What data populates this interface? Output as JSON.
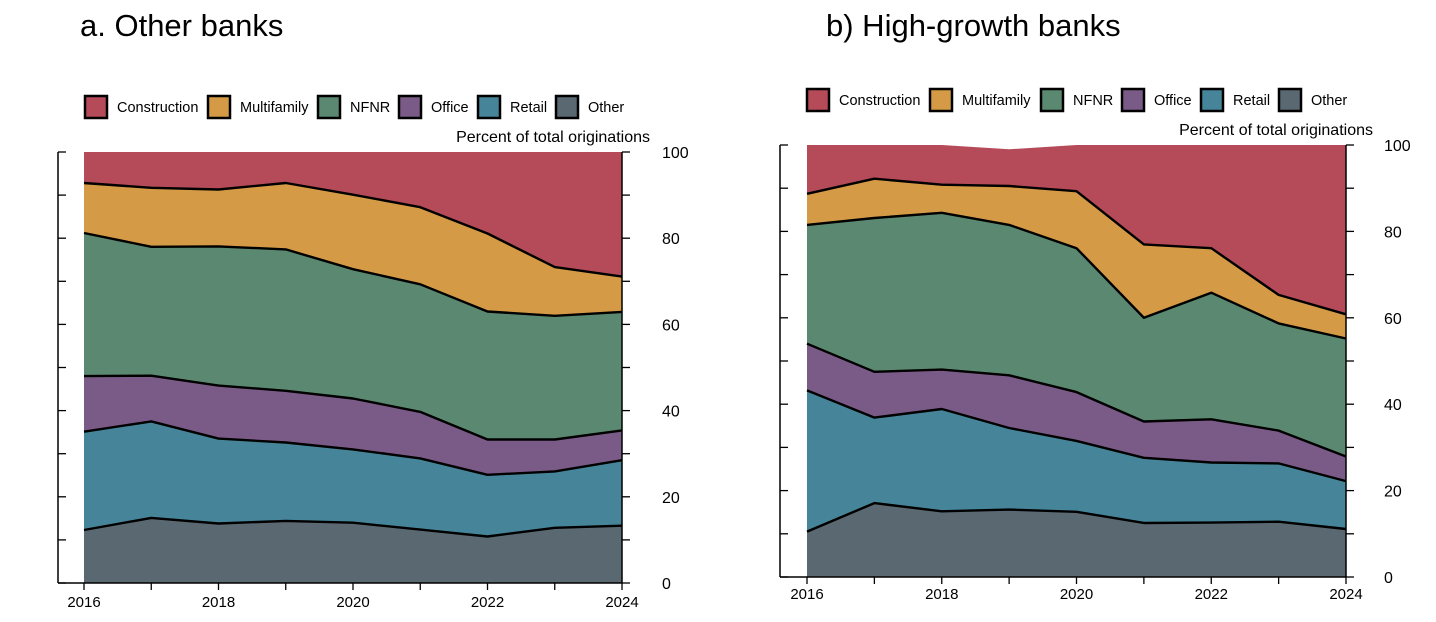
{
  "chart_data": [
    {
      "type": "area",
      "stacked": true,
      "title": "a.   Other banks",
      "axis_note": "Percent of total originations",
      "x": [
        2016,
        2017,
        2018,
        2019,
        2020,
        2021,
        2022,
        2023,
        2024
      ],
      "x_ticks": [
        "2016",
        "2018",
        "2020",
        "2022",
        "2024"
      ],
      "ylim": [
        0,
        100
      ],
      "y_ticks": [
        "0",
        "20",
        "40",
        "60",
        "80",
        "100"
      ],
      "legend_position": "top",
      "series": [
        {
          "name": "Other",
          "color": "#5a6872",
          "values": [
            12.3,
            15.1,
            13.8,
            14.4,
            14.0,
            12.4,
            10.8,
            12.8,
            13.3
          ]
        },
        {
          "name": "Retail",
          "color": "#468599",
          "values": [
            22.8,
            22.4,
            19.7,
            18.2,
            17.0,
            16.5,
            14.3,
            13.1,
            15.2
          ]
        },
        {
          "name": "Office",
          "color": "#7a5b87",
          "values": [
            12.9,
            10.6,
            12.3,
            12.0,
            11.8,
            10.8,
            8.2,
            7.4,
            6.9
          ]
        },
        {
          "name": "NFNR",
          "color": "#5b8870",
          "values": [
            33.2,
            29.9,
            32.3,
            32.8,
            30.0,
            29.6,
            29.7,
            28.7,
            27.5
          ]
        },
        {
          "name": "Multifamily",
          "color": "#d59a45",
          "values": [
            11.6,
            13.7,
            13.2,
            15.4,
            17.3,
            17.9,
            18.1,
            11.3,
            8.2
          ]
        },
        {
          "name": "Construction",
          "color": "#b54a59",
          "values": [
            7.2,
            8.3,
            8.7,
            7.2,
            9.9,
            12.8,
            18.9,
            26.7,
            28.9
          ]
        }
      ]
    },
    {
      "type": "area",
      "stacked": true,
      "title": "b) High-growth banks",
      "axis_note": "Percent of total originations",
      "x": [
        2016,
        2017,
        2018,
        2019,
        2020,
        2021,
        2022,
        2023,
        2024
      ],
      "x_ticks": [
        "2016",
        "2018",
        "2020",
        "2022",
        "2024"
      ],
      "ylim": [
        0,
        100
      ],
      "y_ticks": [
        "0",
        "20",
        "40",
        "60",
        "80",
        "100"
      ],
      "legend_position": "top",
      "series": [
        {
          "name": "Other",
          "color": "#5a6872",
          "values": [
            10.5,
            17.1,
            15.2,
            15.6,
            15.1,
            12.5,
            12.6,
            12.8,
            11.1
          ]
        },
        {
          "name": "Retail",
          "color": "#468599",
          "values": [
            32.7,
            19.8,
            23.7,
            18.9,
            16.4,
            15.1,
            13.9,
            13.5,
            11.1
          ]
        },
        {
          "name": "Office",
          "color": "#7a5b87",
          "values": [
            10.8,
            10.6,
            9.1,
            12.2,
            11.3,
            8.4,
            10.0,
            7.6,
            5.7
          ]
        },
        {
          "name": "NFNR",
          "color": "#5b8870",
          "values": [
            27.5,
            35.6,
            36.3,
            34.8,
            33.3,
            24.0,
            29.3,
            24.8,
            27.3
          ]
        },
        {
          "name": "Multifamily",
          "color": "#d59a45",
          "values": [
            7.2,
            9.1,
            6.5,
            9.0,
            13.2,
            17.0,
            10.3,
            6.6,
            5.6
          ]
        },
        {
          "name": "Construction",
          "color": "#b54a59",
          "values": [
            11.3,
            7.8,
            9.2,
            8.5,
            10.7,
            23.0,
            23.9,
            34.7,
            39.2
          ]
        }
      ]
    }
  ]
}
